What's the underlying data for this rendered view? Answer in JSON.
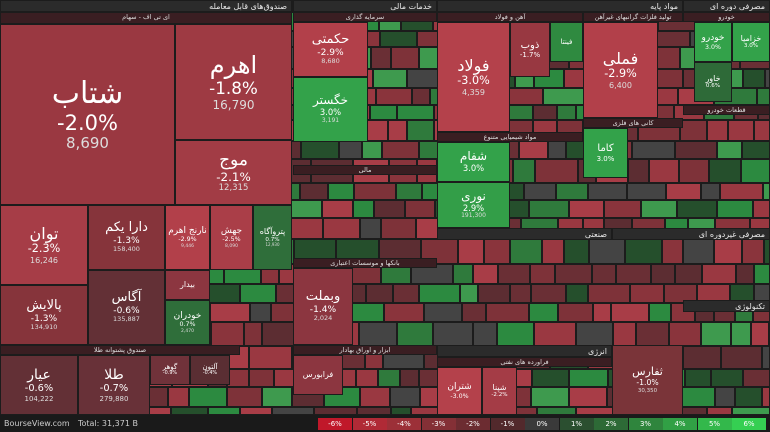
{
  "sections": [
    {
      "title": "صندوق‌های قابل معامله"
    },
    {
      "title": "خدمات مالی"
    },
    {
      "title": "مواد پایه"
    },
    {
      "title": "مصرفی دوره ای"
    },
    {
      "title": "ای تی اف - سهام"
    },
    {
      "title": "سرمایه گذاری"
    },
    {
      "title": "آهن و فولاد"
    },
    {
      "title": "تولید فلزات گرانبهای غیرآهن"
    },
    {
      "title": "خودرو"
    },
    {
      "title": "مالی"
    },
    {
      "title": "مواد شیمیایی متنوع"
    },
    {
      "title": "کانی های فلزی"
    },
    {
      "title": "قطعات خودرو"
    },
    {
      "title": "بانکها و موسسات اعتباری"
    },
    {
      "title": "صنعتی"
    },
    {
      "title": "مصرفی غیردوره ای"
    },
    {
      "title": "صندوق پشتوانه طلا"
    },
    {
      "title": "انرژی"
    },
    {
      "title": "فراورده های نفتی"
    },
    {
      "title": "تکنولوژی"
    },
    {
      "title": "ابزار و اوراق بهادار"
    }
  ],
  "tiles": [
    {
      "name": "شتاب",
      "change": "-2.0%",
      "volume": "8,690",
      "color": "#9a3841"
    },
    {
      "name": "اهرم",
      "change": "-1.8%",
      "volume": "16,790",
      "color": "#9e3a43"
    },
    {
      "name": "موج",
      "change": "-2.1%",
      "volume": "12,315",
      "color": "#a23c45"
    },
    {
      "name": "توان",
      "change": "-2.3%",
      "volume": "16,246",
      "color": "#a63d47"
    },
    {
      "name": "دارا یکم",
      "change": "-1.3%",
      "volume": "158,400",
      "color": "#86343b"
    },
    {
      "name": "نارنج اهرم",
      "change": "-2.9%",
      "volume": "9,446",
      "color": "#b2404a"
    },
    {
      "name": "جهش",
      "change": "-2.5%",
      "volume": "8,090",
      "color": "#aa3e48"
    },
    {
      "name": "پتروآگاه",
      "change": "0.7%",
      "volume": "12,930",
      "color": "#2f6e3a"
    },
    {
      "name": "پالایش",
      "change": "-1.3%",
      "volume": "134,910",
      "color": "#86343b"
    },
    {
      "name": "آگاس",
      "change": "-0.6%",
      "volume": "135,887",
      "color": "#633036"
    },
    {
      "name": "بیدار",
      "color": "#8c3640"
    },
    {
      "name": "خودران",
      "change": "0.7%",
      "volume": "2,470",
      "color": "#2f6e3a"
    },
    {
      "name": "عیار",
      "change": "-0.6%",
      "volume": "104,222",
      "color": "#633036"
    },
    {
      "name": "طلا",
      "change": "-0.7%",
      "volume": "279,880",
      "color": "#683138"
    },
    {
      "name": "گوهر",
      "change": "-0.9%",
      "color": "#70323a"
    },
    {
      "name": "آلتون",
      "change": "-0.4%",
      "color": "#5a2e33"
    },
    {
      "name": "حکمتی",
      "change": "-2.9%",
      "volume": "8,680",
      "color": "#b2404a"
    },
    {
      "name": "خگستر",
      "change": "3.0%",
      "volume": "3,191",
      "color": "#33a24a"
    },
    {
      "name": "وبملت",
      "change": "-1.4%",
      "volume": "2,024",
      "color": "#8c3640"
    },
    {
      "name": "فولاد",
      "change": "-3.0%",
      "volume": "4,359",
      "color": "#b4414b"
    },
    {
      "name": "ذوب",
      "change": "-1.7%",
      "color": "#983841"
    },
    {
      "name": "فینتا",
      "color": "#2f8a40"
    },
    {
      "name": "شفام",
      "change": "3.0%",
      "color": "#33a24a"
    },
    {
      "name": "نوری",
      "change": "2.9%",
      "volume": "191,300",
      "color": "#339e48"
    },
    {
      "name": "فملی",
      "change": "-2.9%",
      "volume": "6,400",
      "color": "#b2404a"
    },
    {
      "name": "کاما",
      "change": "3.0%",
      "color": "#33a24a"
    },
    {
      "name": "خزامیا",
      "change": "3.0%",
      "color": "#33a24a"
    },
    {
      "name": "خودرو",
      "change": "3.0%",
      "color": "#33a24a"
    },
    {
      "name": "خاور",
      "change": "0.6%",
      "color": "#2e6a38"
    },
    {
      "name": "شتران",
      "change": "-3.0%",
      "color": "#b4414b"
    },
    {
      "name": "شپنا",
      "change": "-2.2%",
      "color": "#a43c46"
    },
    {
      "name": "ثفارس",
      "change": "-1.0%",
      "volume": "30,350",
      "color": "#7a3439"
    },
    {
      "name": "فرابورس",
      "color": "#8c3640"
    }
  ],
  "footer": {
    "site": "BourseView.com",
    "total": "Total: 31,371 B",
    "legend": [
      {
        "label": "-6%",
        "color": "#c0182a"
      },
      {
        "label": "-5%",
        "color": "#b02a36"
      },
      {
        "label": "-4%",
        "color": "#9c3038"
      },
      {
        "label": "-3%",
        "color": "#843036"
      },
      {
        "label": "-2%",
        "color": "#6c2c31"
      },
      {
        "label": "-1%",
        "color": "#52292c"
      },
      {
        "label": "0%",
        "color": "#3a3a3a"
      },
      {
        "label": "1%",
        "color": "#2b4f30"
      },
      {
        "label": "2%",
        "color": "#2d6a36"
      },
      {
        "label": "3%",
        "color": "#2f853d"
      },
      {
        "label": "4%",
        "color": "#31a045"
      },
      {
        "label": "5%",
        "color": "#33b84b"
      },
      {
        "label": "6%",
        "color": "#35cf52"
      }
    ]
  }
}
